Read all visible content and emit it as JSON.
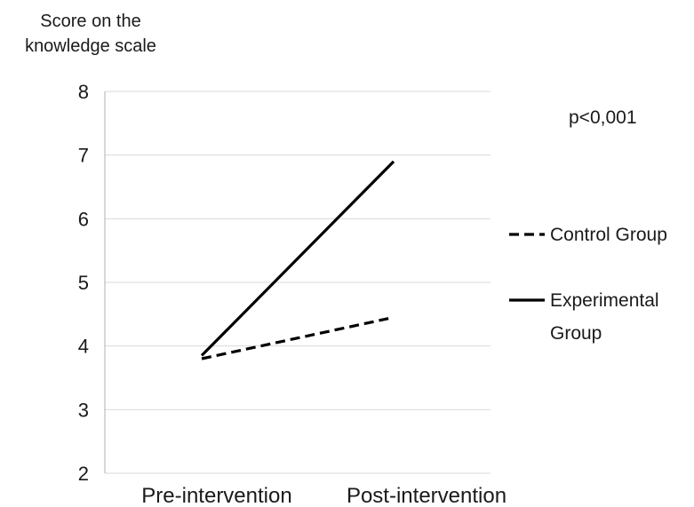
{
  "chart_data": {
    "type": "line",
    "title": "",
    "ylabel": "Score on the knowledge scale",
    "ylabel_lines": [
      "Score on the",
      "knowledge scale"
    ],
    "xlabel": "",
    "categories": [
      "Pre-intervention",
      "Post-intervention"
    ],
    "yticks": [
      2,
      3,
      4,
      5,
      6,
      7,
      8
    ],
    "ylim": [
      2,
      8
    ],
    "grid": true,
    "legend_position": "right",
    "annotation": "p<0,001",
    "series": [
      {
        "name": "Control Group",
        "name_lines": [
          "Control Group"
        ],
        "values": [
          3.8,
          4.45
        ],
        "style": "dashed",
        "color": "#000000"
      },
      {
        "name": "Experimental Group",
        "name_lines": [
          "Experimental",
          "Group"
        ],
        "values": [
          3.85,
          6.9
        ],
        "style": "solid",
        "color": "#000000"
      }
    ]
  }
}
